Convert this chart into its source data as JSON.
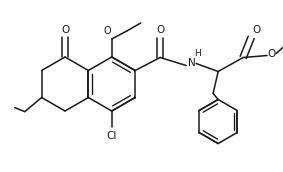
{
  "bg_color": "#ffffff",
  "line_color": "#1a1a1a",
  "line_width": 1.1,
  "figsize": [
    2.83,
    1.72
  ],
  "dpi": 100,
  "xlim": [
    0,
    283
  ],
  "ylim": [
    0,
    172
  ]
}
